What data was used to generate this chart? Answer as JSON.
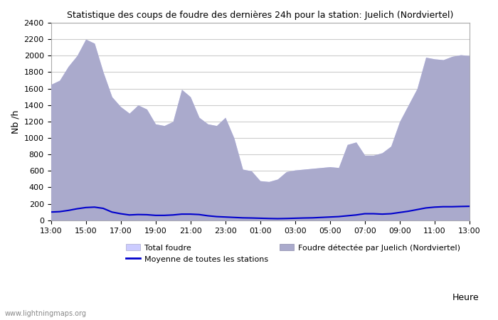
{
  "title": "Statistique des coups de foudre des dernières 24h pour la station: Juelich (Nordviertel)",
  "ylabel": "Nb /h",
  "xlim": [
    0,
    48
  ],
  "ylim": [
    0,
    2400
  ],
  "yticks": [
    0,
    200,
    400,
    600,
    800,
    1000,
    1200,
    1400,
    1600,
    1800,
    2000,
    2200,
    2400
  ],
  "xtick_labels": [
    "13:00",
    "15:00",
    "17:00",
    "19:00",
    "21:00",
    "23:00",
    "01:00",
    "03:00",
    "05:00",
    "07:00",
    "09:00",
    "11:00",
    "13:00"
  ],
  "xtick_positions": [
    0,
    4,
    8,
    12,
    16,
    20,
    24,
    28,
    32,
    36,
    40,
    44,
    48
  ],
  "background_color": "#ffffff",
  "plot_bg_color": "#ffffff",
  "grid_color": "#cccccc",
  "total_foudre_color": "#ccccff",
  "foudre_detectee_color": "#aaaacc",
  "moyenne_color": "#0000cc",
  "watermark": "www.lightningmaps.org",
  "total_foudre_values": [
    1650,
    1700,
    1870,
    2000,
    2200,
    2150,
    1800,
    1500,
    1380,
    1300,
    1400,
    1350,
    1170,
    1150,
    1200,
    1590,
    1500,
    1250,
    1170,
    1150,
    1250,
    1000,
    620,
    600,
    480,
    470,
    500,
    590,
    610,
    620,
    630,
    640,
    650,
    640,
    920,
    950,
    790,
    790,
    820,
    900,
    1200,
    1400,
    1600,
    1980,
    1960,
    1950,
    1990,
    2010,
    2000
  ],
  "foudre_detectee_values": [
    1650,
    1700,
    1870,
    2000,
    2200,
    2150,
    1800,
    1500,
    1380,
    1300,
    1400,
    1350,
    1170,
    1150,
    1200,
    1590,
    1500,
    1250,
    1170,
    1150,
    1250,
    1000,
    620,
    600,
    480,
    470,
    500,
    590,
    610,
    620,
    630,
    640,
    650,
    640,
    920,
    950,
    790,
    790,
    820,
    900,
    1200,
    1400,
    1600,
    1980,
    1960,
    1950,
    1990,
    2010,
    2000
  ],
  "moyenne_values": [
    100,
    105,
    120,
    140,
    155,
    160,
    145,
    100,
    80,
    65,
    70,
    68,
    60,
    60,
    65,
    75,
    75,
    70,
    55,
    45,
    40,
    35,
    30,
    28,
    25,
    22,
    20,
    22,
    25,
    28,
    30,
    35,
    40,
    45,
    55,
    65,
    80,
    80,
    75,
    80,
    95,
    110,
    130,
    150,
    160,
    165,
    165,
    168,
    170
  ],
  "legend_total": "Total foudre",
  "legend_moyenne": "Moyenne de toutes les stations",
  "legend_detectee": "Foudre détectée par Juelich (Nordviertel)",
  "heure_label": "Heure"
}
